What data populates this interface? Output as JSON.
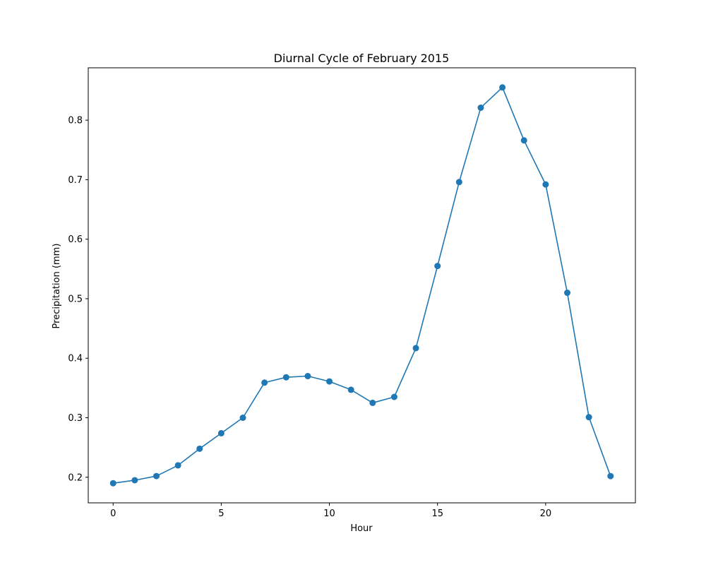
{
  "chart_data": {
    "type": "line",
    "title": "Diurnal Cycle of February 2015",
    "xlabel": "Hour",
    "ylabel": "Precipitation (mm)",
    "x": [
      0,
      1,
      2,
      3,
      4,
      5,
      6,
      7,
      8,
      9,
      10,
      11,
      12,
      13,
      14,
      15,
      16,
      17,
      18,
      19,
      20,
      21,
      22,
      23
    ],
    "series": [
      {
        "values": [
          0.19,
          0.195,
          0.202,
          0.22,
          0.248,
          0.274,
          0.3,
          0.359,
          0.368,
          0.37,
          0.361,
          0.347,
          0.325,
          0.335,
          0.417,
          0.555,
          0.696,
          0.821,
          0.855,
          0.766,
          0.692,
          0.51,
          0.301,
          0.202
        ]
      }
    ],
    "xlim": [
      -1.15,
      24.15
    ],
    "ylim": [
      0.157,
      0.888
    ],
    "xticks": [
      0,
      5,
      10,
      15,
      20
    ],
    "yticks": [
      0.2,
      0.3,
      0.4,
      0.5,
      0.6,
      0.7,
      0.8
    ],
    "xtick_labels": [
      "0",
      "5",
      "10",
      "15",
      "20"
    ],
    "ytick_labels": [
      "0.2",
      "0.3",
      "0.4",
      "0.5",
      "0.6",
      "0.7",
      "0.8"
    ],
    "markers": true,
    "grid": false,
    "color": "#1f77b4"
  }
}
